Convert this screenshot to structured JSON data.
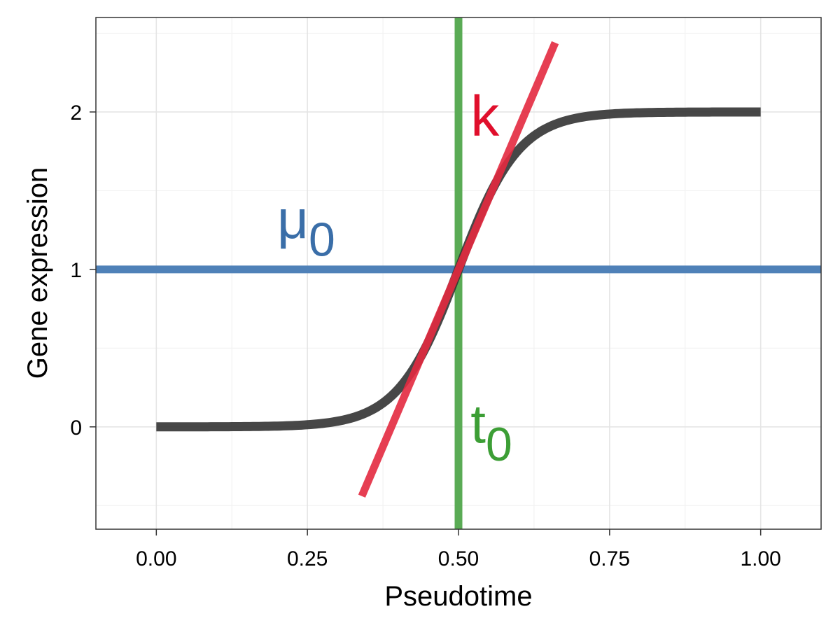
{
  "chart_data": {
    "type": "line",
    "title": "",
    "xlabel": "Pseudotime",
    "ylabel": "Gene expression",
    "xlim": [
      -0.1,
      1.1
    ],
    "ylim": [
      -0.65,
      2.6
    ],
    "x_ticks": [
      0.0,
      0.25,
      0.5,
      0.75,
      1.0
    ],
    "x_tick_labels": [
      "0.00",
      "0.25",
      "0.50",
      "0.75",
      "1.00"
    ],
    "y_ticks": [
      0,
      1,
      2
    ],
    "y_tick_labels": [
      "0",
      "1",
      "2"
    ],
    "grid": true,
    "legend": "none",
    "sigmoid": {
      "color": "#333333",
      "mu0": 1,
      "k": 20,
      "t0": 0.5,
      "x_range": [
        0.0,
        1.0
      ],
      "points": [
        {
          "x": 0.0,
          "y": 0.0001
        },
        {
          "x": 0.1,
          "y": 0.0007
        },
        {
          "x": 0.2,
          "y": 0.005
        },
        {
          "x": 0.3,
          "y": 0.036
        },
        {
          "x": 0.35,
          "y": 0.095
        },
        {
          "x": 0.4,
          "y": 0.238
        },
        {
          "x": 0.45,
          "y": 0.538
        },
        {
          "x": 0.5,
          "y": 1.0
        },
        {
          "x": 0.55,
          "y": 1.462
        },
        {
          "x": 0.6,
          "y": 1.762
        },
        {
          "x": 0.65,
          "y": 1.905
        },
        {
          "x": 0.7,
          "y": 1.964
        },
        {
          "x": 0.8,
          "y": 1.995
        },
        {
          "x": 0.9,
          "y": 1.9993
        },
        {
          "x": 1.0,
          "y": 1.9999
        }
      ]
    },
    "hline": {
      "y": 1,
      "color": "#4f81b8",
      "label_base": "μ",
      "label_sub": "0",
      "label_x": 0.2,
      "label_y": 1.2
    },
    "vline": {
      "x": 0.5,
      "color": "#5aab55",
      "label_base": "t",
      "label_sub": "0",
      "label_x": 0.52,
      "label_y": -0.1
    },
    "tangent": {
      "color": "#e3293f",
      "from": {
        "x": 0.34,
        "y": -0.44
      },
      "to": {
        "x": 0.66,
        "y": 2.44
      },
      "label": "k",
      "label_x": 0.52,
      "label_y": 1.85
    },
    "label_colors": {
      "mu0": "#3a6ea8",
      "t0": "#3c9e35",
      "k": "#e00f2c"
    }
  }
}
